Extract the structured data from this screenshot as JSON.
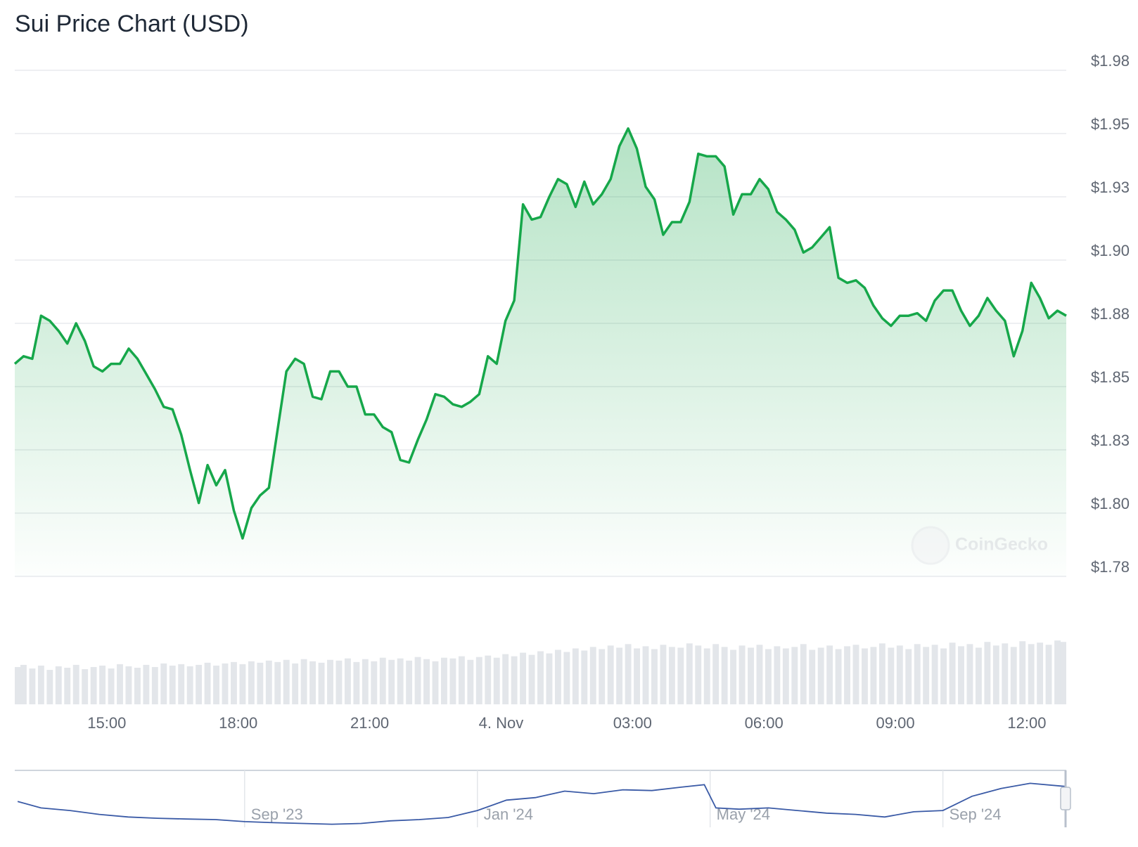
{
  "chart_data": [
    {
      "type": "area",
      "title": "Sui Price Chart (USD)",
      "watermark": "CoinGecko",
      "color": "#16a74a",
      "grid": true,
      "xlim": [
        12.9,
        36.9
      ],
      "xticks": [
        {
          "value": 15,
          "label": "15:00"
        },
        {
          "value": 18,
          "label": "18:00"
        },
        {
          "value": 21,
          "label": "21:00"
        },
        {
          "value": 24,
          "label": "4. Nov"
        },
        {
          "value": 27,
          "label": "03:00"
        },
        {
          "value": 30,
          "label": "06:00"
        },
        {
          "value": 33,
          "label": "09:00"
        },
        {
          "value": 36,
          "label": "12:00"
        }
      ],
      "ylim": [
        1.775,
        1.975
      ],
      "yticks": [
        {
          "value": 1.975,
          "label": "$1.98"
        },
        {
          "value": 1.95,
          "label": "$1.95"
        },
        {
          "value": 1.925,
          "label": "$1.93"
        },
        {
          "value": 1.9,
          "label": "$1.90"
        },
        {
          "value": 1.875,
          "label": "$1.88"
        },
        {
          "value": 1.85,
          "label": "$1.85"
        },
        {
          "value": 1.825,
          "label": "$1.83"
        },
        {
          "value": 1.8,
          "label": "$1.80"
        },
        {
          "value": 1.775,
          "label": "$1.78"
        }
      ],
      "x": [
        12.9,
        13.1,
        13.3,
        13.5,
        13.7,
        13.9,
        14.1,
        14.3,
        14.5,
        14.7,
        14.9,
        15.1,
        15.3,
        15.5,
        15.7,
        15.9,
        16.1,
        16.3,
        16.5,
        16.7,
        16.9,
        17.1,
        17.3,
        17.5,
        17.7,
        17.9,
        18.1,
        18.3,
        18.5,
        18.7,
        18.9,
        19.1,
        19.3,
        19.5,
        19.7,
        19.9,
        20.1,
        20.3,
        20.5,
        20.7,
        20.9,
        21.1,
        21.3,
        21.5,
        21.7,
        21.9,
        22.1,
        22.3,
        22.5,
        22.7,
        22.9,
        23.1,
        23.3,
        23.5,
        23.7,
        23.9,
        24.1,
        24.3,
        24.5,
        24.7,
        24.9,
        25.1,
        25.3,
        25.5,
        25.7,
        25.9,
        26.1,
        26.3,
        26.5,
        26.7,
        26.9,
        27.1,
        27.3,
        27.5,
        27.7,
        27.9,
        28.1,
        28.3,
        28.5,
        28.7,
        28.9,
        29.1,
        29.3,
        29.5,
        29.7,
        29.9,
        30.1,
        30.3,
        30.5,
        30.7,
        30.9,
        31.1,
        31.3,
        31.5,
        31.7,
        31.9,
        32.1,
        32.3,
        32.5,
        32.7,
        32.9,
        33.1,
        33.3,
        33.5,
        33.7,
        33.9,
        34.1,
        34.3,
        34.5,
        34.7,
        34.9,
        35.1,
        35.3,
        35.5,
        35.7,
        35.9,
        36.1,
        36.3,
        36.5,
        36.7,
        36.9
      ],
      "values": [
        1.859,
        1.862,
        1.861,
        1.878,
        1.876,
        1.872,
        1.867,
        1.875,
        1.868,
        1.858,
        1.856,
        1.859,
        1.859,
        1.865,
        1.861,
        1.855,
        1.849,
        1.842,
        1.841,
        1.831,
        1.817,
        1.804,
        1.819,
        1.811,
        1.817,
        1.801,
        1.79,
        1.802,
        1.807,
        1.81,
        1.833,
        1.856,
        1.861,
        1.859,
        1.846,
        1.845,
        1.856,
        1.856,
        1.85,
        1.85,
        1.839,
        1.839,
        1.834,
        1.832,
        1.821,
        1.82,
        1.829,
        1.837,
        1.847,
        1.846,
        1.843,
        1.842,
        1.844,
        1.847,
        1.862,
        1.859,
        1.876,
        1.884,
        1.922,
        1.916,
        1.917,
        1.925,
        1.932,
        1.93,
        1.921,
        1.931,
        1.922,
        1.926,
        1.932,
        1.945,
        1.952,
        1.944,
        1.929,
        1.924,
        1.91,
        1.915,
        1.915,
        1.923,
        1.942,
        1.941,
        1.941,
        1.937,
        1.918,
        1.926,
        1.926,
        1.932,
        1.928,
        1.919,
        1.916,
        1.912,
        1.903,
        1.905,
        1.909,
        1.913,
        1.893,
        1.891,
        1.892,
        1.889,
        1.882,
        1.877,
        1.874,
        1.878,
        1.878,
        1.879,
        1.876,
        1.884,
        1.888,
        1.888,
        1.88,
        1.874,
        1.878,
        1.885,
        1.88,
        1.876,
        1.862,
        1.872,
        1.891,
        1.885,
        1.877,
        1.88,
        1.878
      ],
      "volume": {
        "type": "bar",
        "color": "#e3e6ea",
        "ylim": [
          0,
          100
        ],
        "values": [
          52,
          55,
          50,
          54,
          48,
          53,
          51,
          55,
          49,
          52,
          54,
          50,
          56,
          53,
          51,
          55,
          52,
          57,
          54,
          56,
          53,
          55,
          58,
          54,
          57,
          59,
          56,
          60,
          58,
          61,
          59,
          62,
          57,
          63,
          60,
          58,
          62,
          61,
          64,
          59,
          63,
          60,
          65,
          62,
          64,
          61,
          66,
          63,
          60,
          65,
          64,
          67,
          62,
          66,
          68,
          65,
          70,
          67,
          72,
          69,
          74,
          71,
          76,
          73,
          78,
          75,
          80,
          77,
          82,
          79,
          84,
          78,
          81,
          77,
          83,
          80,
          79,
          85,
          82,
          78,
          84,
          80,
          76,
          82,
          79,
          83,
          77,
          81,
          78,
          80,
          84,
          76,
          79,
          82,
          77,
          81,
          83,
          78,
          80,
          85,
          79,
          82,
          77,
          84,
          80,
          83,
          78,
          86,
          81,
          84,
          79,
          87,
          82,
          85,
          80,
          88,
          84,
          86,
          83,
          89,
          87
        ]
      }
    },
    {
      "type": "line",
      "color": "#3a5aa6",
      "xlim": [
        4.05,
        22.12
      ],
      "ylim": [
        0.3,
        2.5
      ],
      "xticks": [
        {
          "value": 8,
          "label": "Sep '23"
        },
        {
          "value": 12,
          "label": "Jan '24"
        },
        {
          "value": 16,
          "label": "May '24"
        },
        {
          "value": 20,
          "label": "Sep '24"
        }
      ],
      "x": [
        4.1,
        4.5,
        5,
        5.5,
        6,
        6.5,
        7,
        7.5,
        8,
        8.5,
        9,
        9.5,
        10,
        10.5,
        11,
        11.5,
        12,
        12.5,
        13,
        13.5,
        14,
        14.5,
        15,
        15.5,
        15.9,
        16.1,
        16.5,
        17,
        17.5,
        18,
        18.5,
        19,
        19.5,
        20,
        20.5,
        21,
        21.5,
        22.1
      ],
      "values": [
        1.3,
        1.05,
        0.95,
        0.8,
        0.7,
        0.65,
        0.62,
        0.6,
        0.52,
        0.48,
        0.45,
        0.42,
        0.45,
        0.55,
        0.6,
        0.68,
        0.95,
        1.35,
        1.45,
        1.7,
        1.6,
        1.75,
        1.72,
        1.85,
        1.95,
        1.05,
        1.0,
        1.05,
        0.95,
        0.85,
        0.8,
        0.7,
        0.9,
        0.95,
        1.5,
        1.8,
        2.0,
        1.88
      ]
    }
  ]
}
